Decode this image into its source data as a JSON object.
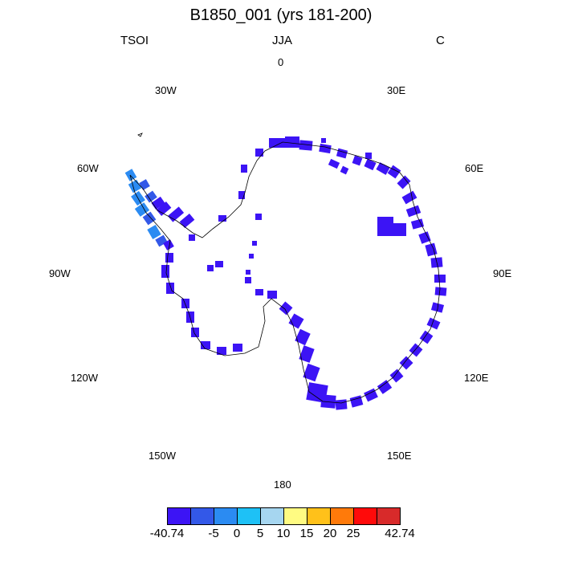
{
  "title": "B1850_001 (yrs 181-200)",
  "left_label": "TSOI",
  "center_label": "JJA",
  "right_label": "C",
  "longitude_labels": {
    "n0": "0",
    "n30e": "30E",
    "n60e": "60E",
    "n90e": "90E",
    "n120e": "120E",
    "n150e": "150E",
    "n180": "180",
    "n150w": "150W",
    "n120w": "120W",
    "n90w": "90W",
    "n60w": "60W",
    "n30w": "30W"
  },
  "colorbar": {
    "labels": [
      "-40.74",
      "-5",
      "0",
      "5",
      "10",
      "15",
      "20",
      "25",
      "42.74"
    ],
    "colors": [
      "#3c14f5",
      "#3358e8",
      "#2b8bf2",
      "#1ec1f6",
      "#a6d6f0",
      "#fffb82",
      "#ffc11a",
      "#ff7a0a",
      "#ff0a0a",
      "#d82a2a"
    ]
  },
  "map_colors": {
    "dominant": "#3c14f5",
    "peninsula_warm": "#2b8bf2",
    "peninsula_mid": "#3358e8",
    "coastline": "#000000"
  }
}
